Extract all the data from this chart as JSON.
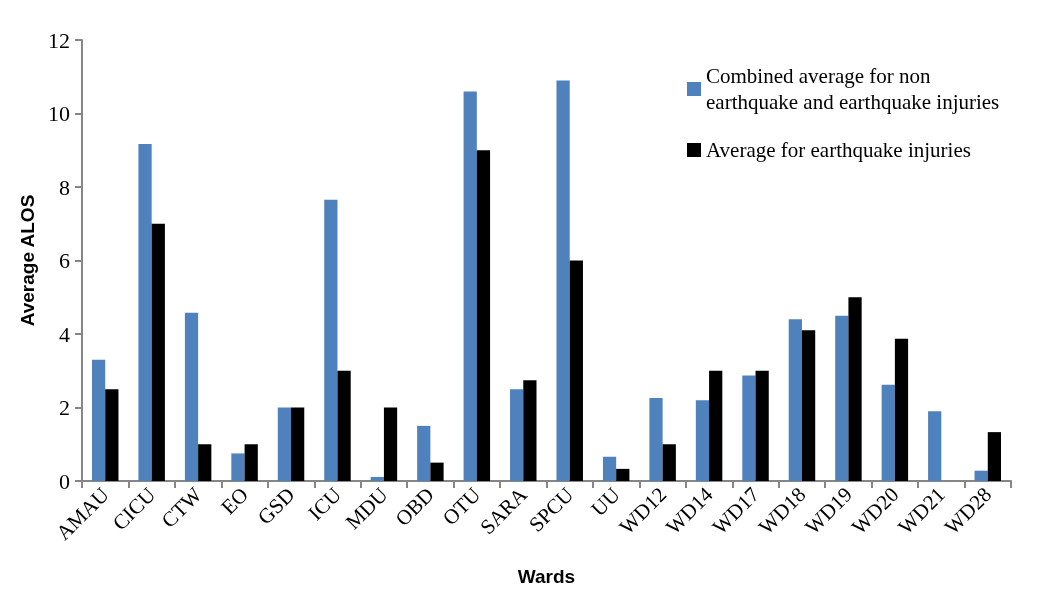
{
  "chart_data": {
    "type": "bar",
    "xlabel": "Wards",
    "ylabel": "Average ALOS",
    "categories": [
      "AMAU",
      "CICU",
      "CTW",
      "EO",
      "GSD",
      "ICU",
      "MDU",
      "OBD",
      "OTU",
      "SARA",
      "SPCU",
      "UU",
      "WD12",
      "WD14",
      "WD17",
      "WD18",
      "WD19",
      "WD20",
      "WD21",
      "WD28"
    ],
    "series": [
      {
        "name": "Combined average for non earthquake and earthquake injuries",
        "color": "#4f81bd",
        "values": [
          3.3,
          9.17,
          4.58,
          0.75,
          2,
          7.65,
          0.11,
          1.5,
          10.6,
          2.5,
          10.9,
          0.66,
          2.26,
          2.2,
          2.87,
          4.4,
          4.5,
          2.62,
          1.9,
          0.28
        ]
      },
      {
        "name": "Average for earthquake injuries",
        "color": "#000000",
        "values": [
          2.5,
          7,
          1,
          1,
          2,
          3,
          2,
          0.5,
          9,
          2.74,
          6,
          0.33,
          1,
          3,
          3,
          4.1,
          5,
          3.87,
          0,
          1.33
        ]
      }
    ],
    "ylim": [
      0,
      12
    ],
    "yticks": [
      0,
      2,
      4,
      6,
      8,
      10,
      12
    ],
    "grid": false,
    "legend": "top right"
  }
}
